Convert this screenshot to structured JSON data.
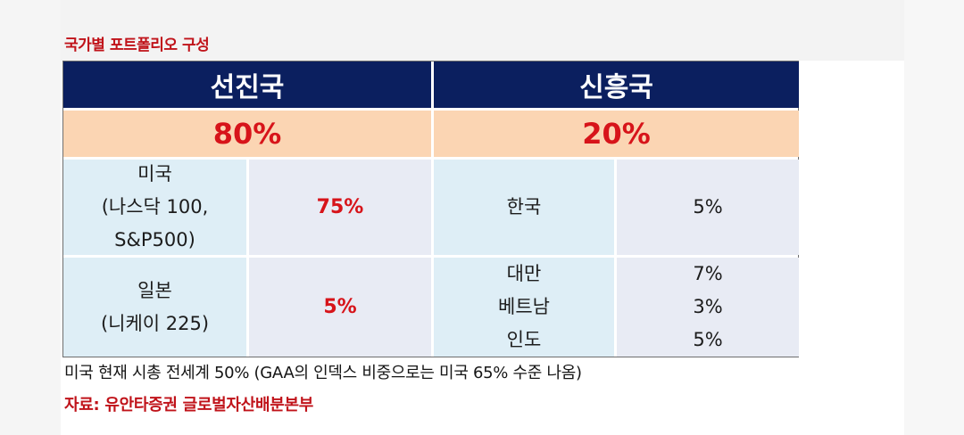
{
  "title": "국가별 포트폴리오 구성",
  "developed": {
    "header": "선진국",
    "total": "80%",
    "rows": [
      {
        "country_lines": [
          "미국",
          "(나스닥 100,",
          "S&P500)"
        ],
        "weight": "75%"
      },
      {
        "country_lines": [
          "일본",
          "(니케이 225)"
        ],
        "weight": "5%"
      }
    ]
  },
  "emerging": {
    "header": "신흥국",
    "total": "20%",
    "rows": [
      {
        "country": "한국",
        "weight": "5%"
      },
      {
        "country_lines": [
          "대만",
          "베트남",
          "인도"
        ],
        "weight_lines": [
          "7%",
          "3%",
          "5%"
        ]
      }
    ]
  },
  "note": "미국 현재 시총 전세계 50% (GAA의 인덱스 비중으로는 미국 65% 수준 나옴)",
  "source": "자료: 유안타증권 글로벌자산배분본부",
  "colors": {
    "header_bg": "#0b1f5f",
    "percent_bg": "#fbd5b3",
    "accent_red": "#d7141a"
  }
}
